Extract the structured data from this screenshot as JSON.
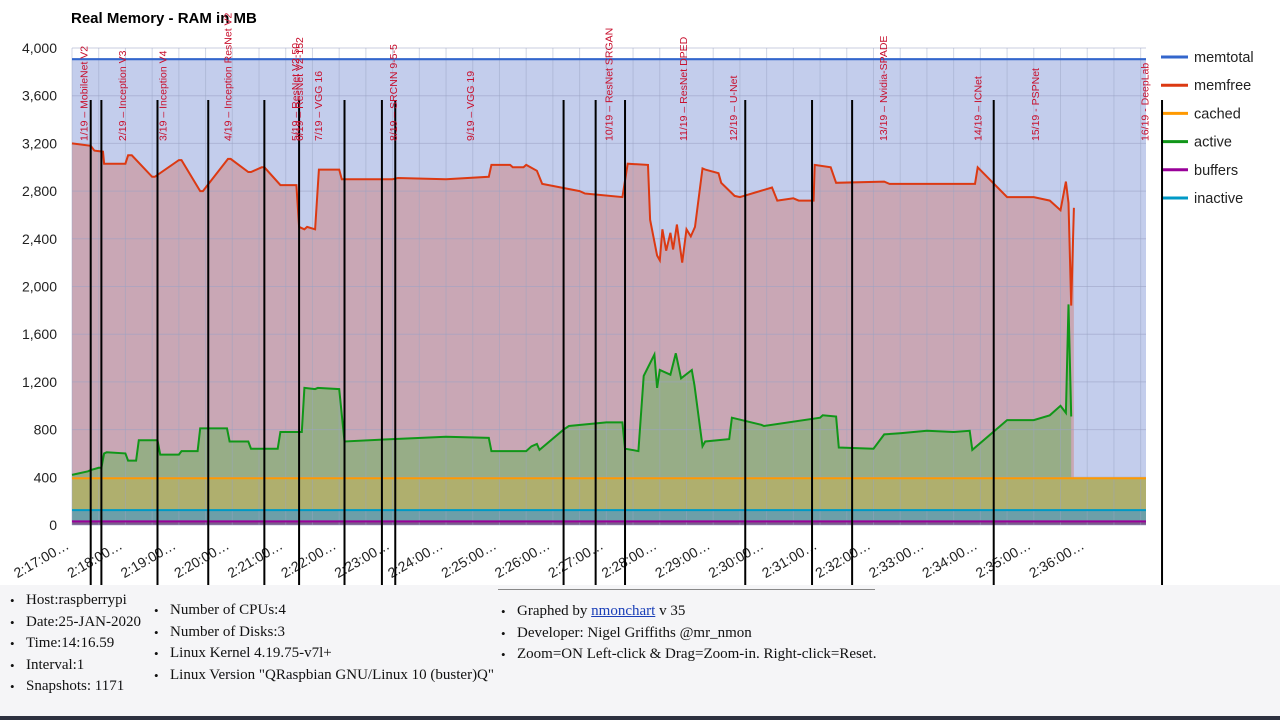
{
  "chart_data": {
    "type": "area",
    "title": "Real Memory - RAM in MB",
    "ylim": [
      0,
      4000
    ],
    "y_ticks": [
      "4,000",
      "3,600",
      "3,200",
      "2,800",
      "2,400",
      "2,000",
      "1,600",
      "1,200",
      "800",
      "400",
      "0"
    ],
    "x_ticks": [
      "2:17:00…",
      "2:18:00…",
      "2:19:00…",
      "2:20:00…",
      "2:21:00…",
      "2:22:00…",
      "2:23:00…",
      "2:24:00…",
      "2:25:00…",
      "2:26:00…",
      "2:27:00…",
      "2:28:00…",
      "2:29:00…",
      "2:30:00…",
      "2:31:00…",
      "2:32:00…",
      "2:33:00…",
      "2:34:00…",
      "2:35:00…",
      "2:36:00…"
    ],
    "x_range_minutes": [
      0,
      20.1
    ],
    "grid": true,
    "legend_position": "right",
    "legend": [
      {
        "name": "memtotal",
        "color": "#3366cc"
      },
      {
        "name": "memfree",
        "color": "#dc3912"
      },
      {
        "name": "cached",
        "color": "#ff9900"
      },
      {
        "name": "active",
        "color": "#109618"
      },
      {
        "name": "buffers",
        "color": "#990099"
      },
      {
        "name": "inactive",
        "color": "#0099c6"
      }
    ],
    "flat_series": {
      "memtotal": 3906,
      "cached": 392,
      "inactive": 125,
      "buffers": 30
    },
    "memfree": {
      "x": [
        0,
        0.35,
        0.42,
        0.58,
        0.6,
        1.0,
        1.05,
        1.12,
        1.5,
        1.55,
        2.0,
        2.05,
        2.4,
        2.45,
        2.92,
        2.97,
        3.3,
        3.35,
        3.55,
        3.6,
        3.9,
        3.95,
        4.2,
        4.25,
        4.35,
        4.4,
        4.55,
        4.62,
        5.0,
        5.05,
        5.2,
        5.25,
        5.5,
        5.55,
        6.0,
        6.1,
        7.0,
        7.8,
        7.85,
        8.2,
        8.25,
        8.45,
        8.5,
        8.7,
        8.8,
        9.5,
        9.6,
        10.3,
        10.4,
        10.78,
        10.82,
        10.95,
        11.0,
        11.05,
        11.12,
        11.2,
        11.25,
        11.32,
        11.42,
        11.5,
        11.58,
        11.66,
        11.8,
        11.85,
        12.1,
        12.15,
        12.4,
        12.5,
        13.1,
        13.2,
        13.5,
        13.6,
        13.88,
        13.9,
        14.2,
        14.3,
        15.2,
        15.3,
        16.9,
        16.95,
        17.5,
        18.0,
        18.3,
        18.5,
        18.6,
        18.65,
        18.7,
        18.75
      ],
      "y": [
        3200,
        3180,
        3140,
        3130,
        3030,
        3030,
        3100,
        3100,
        2920,
        2920,
        3060,
        3060,
        2800,
        2800,
        3070,
        3070,
        2960,
        2960,
        3000,
        3000,
        2850,
        2850,
        2850,
        2500,
        2480,
        2500,
        2480,
        2980,
        2980,
        2900,
        2900,
        2900,
        2900,
        2900,
        2900,
        2910,
        2900,
        2920,
        3020,
        3020,
        3000,
        3000,
        3020,
        2970,
        2860,
        2800,
        2780,
        2750,
        3030,
        3020,
        2560,
        2260,
        2220,
        2480,
        2300,
        2450,
        2310,
        2520,
        2200,
        2480,
        2420,
        2500,
        2990,
        2980,
        2950,
        2870,
        2760,
        2750,
        2830,
        2720,
        2740,
        2720,
        2720,
        3020,
        3000,
        2870,
        2880,
        2860,
        2860,
        3000,
        2750,
        2750,
        2720,
        2640,
        2880,
        2700,
        1840,
        2660
      ]
    },
    "active": {
      "x": [
        0,
        0.3,
        0.35,
        0.5,
        0.55,
        0.6,
        0.65,
        1.0,
        1.05,
        1.2,
        1.25,
        1.6,
        1.65,
        2.0,
        2.05,
        2.35,
        2.4,
        2.9,
        2.95,
        3.3,
        3.35,
        3.85,
        3.9,
        4.3,
        4.35,
        4.55,
        4.6,
        5.0,
        5.1,
        6.0,
        7.0,
        7.8,
        7.85,
        8.5,
        8.6,
        8.7,
        8.75,
        9.2,
        9.3,
        10.0,
        10.3,
        10.35,
        10.6,
        10.7,
        10.9,
        10.95,
        11.0,
        11.2,
        11.3,
        11.4,
        11.6,
        11.65,
        11.8,
        11.85,
        12.3,
        12.35,
        12.9,
        12.95,
        14.0,
        14.05,
        14.3,
        14.35,
        15.0,
        15.2,
        15.5,
        16.0,
        16.5,
        16.8,
        16.85,
        17.5,
        18.0,
        18.3,
        18.5,
        18.6,
        18.65,
        18.7
      ],
      "y": [
        420,
        450,
        460,
        480,
        480,
        600,
        610,
        600,
        540,
        540,
        710,
        710,
        590,
        590,
        620,
        620,
        810,
        810,
        700,
        700,
        640,
        640,
        780,
        780,
        1150,
        1140,
        1150,
        1140,
        700,
        720,
        740,
        730,
        620,
        620,
        660,
        680,
        630,
        800,
        830,
        860,
        860,
        640,
        620,
        1250,
        1430,
        1150,
        1300,
        1260,
        1440,
        1230,
        1300,
        1170,
        660,
        700,
        720,
        900,
        840,
        830,
        900,
        920,
        910,
        650,
        640,
        760,
        770,
        790,
        780,
        790,
        630,
        880,
        880,
        920,
        1000,
        940,
        1850,
        910
      ]
    },
    "annotations": [
      "1/19 – MobileNet V2",
      "2/19 – Inception V3",
      "3/19 – Inception V4",
      "4/19 – Inception ResNet V2",
      "5/19 – ResNet V2-50",
      "6/19 – ResNet V2-152",
      "7/19 – VGG 16",
      "8/19 – SRCNN 9-5-5",
      "9/19 – VGG 19",
      "10/19 – ResNet SRGAN",
      "11/19 – ResNet DPED",
      "12/19 – U-Net",
      "13/19 – Nvidia-SPADE",
      "14/19 – ICNet",
      "15/19 - PSPNet",
      "16/19 - DeepLab"
    ],
    "annotation_times": [
      0.3,
      1.3,
      2.35,
      4.05,
      5.8,
      5.9,
      6.4,
      8.35,
      10.35,
      13.95,
      15.9,
      17.2,
      21.1,
      23.55,
      25.05,
      27.9
    ],
    "marker_times": [
      0.35,
      0.55,
      1.6,
      2.55,
      3.6,
      4.25,
      5.1,
      5.8,
      6.05,
      9.2,
      9.8,
      10.35,
      12.6,
      13.85,
      14.6,
      17.25,
      20.4
    ]
  },
  "info": {
    "col1": [
      "Host:raspberrypi",
      "Date:25-JAN-2020",
      "Time:14:16.59",
      "Interval:1",
      "Snapshots: 1171"
    ],
    "col2": [
      "Number of CPUs:4",
      "Number of Disks:3",
      "Linux Kernel 4.19.75-v7l+",
      "Linux Version \"QRaspbian GNU/Linux 10 (buster)Q\""
    ],
    "col3_graphed_prefix": "Graphed by",
    "col3_graphed_link": "nmonchart",
    "col3_graphed_suffix": "v 35",
    "col3": [
      "Developer: Nigel Griffiths @mr_nmon",
      "Zoom=ON Left-click & Drag=Zoom-in. Right-click=Reset."
    ]
  }
}
